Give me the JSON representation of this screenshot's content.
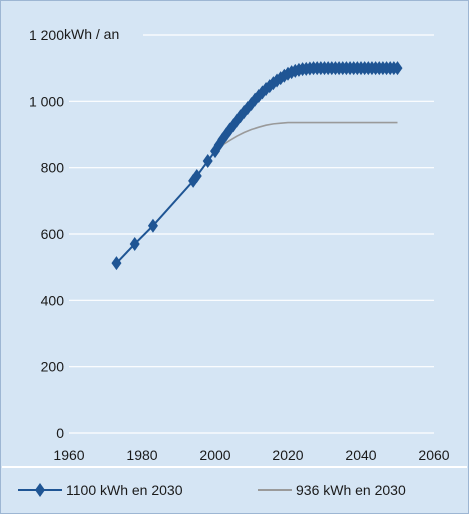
{
  "chart_data": {
    "type": "line",
    "title": "",
    "ylabel": "kWh / an",
    "xlabel": "",
    "xlim": [
      1960,
      2060
    ],
    "ylim": [
      0,
      1200
    ],
    "x_ticks": [
      "1960",
      "1980",
      "2000",
      "2020",
      "2040",
      "2060"
    ],
    "y_ticks": [
      "0",
      "200",
      "400",
      "600",
      "800",
      "1 000",
      "1 200"
    ],
    "grid": "horizontal",
    "legend_position": "bottom",
    "series": [
      {
        "name": "1100 kWh en 2030",
        "color": "#1f5594",
        "marker": "diamond",
        "x": [
          1973,
          1978,
          1983,
          1994,
          1995,
          1998,
          2000,
          2001,
          2002,
          2003,
          2004,
          2005,
          2006,
          2007,
          2008,
          2009,
          2010,
          2011,
          2012,
          2013,
          2014,
          2015,
          2016,
          2017,
          2018,
          2019,
          2020,
          2021,
          2022,
          2023,
          2024,
          2025,
          2026,
          2027,
          2028,
          2029,
          2030,
          2031,
          2032,
          2033,
          2034,
          2035,
          2036,
          2037,
          2038,
          2039,
          2040,
          2041,
          2042,
          2043,
          2044,
          2045,
          2046,
          2047,
          2048,
          2049,
          2050
        ],
        "y": [
          512,
          570,
          625,
          760,
          775,
          820,
          850,
          868,
          885,
          900,
          915,
          928,
          942,
          955,
          968,
          980,
          992,
          1005,
          1016,
          1027,
          1037,
          1046,
          1055,
          1063,
          1070,
          1077,
          1083,
          1088,
          1092,
          1095,
          1097,
          1098,
          1099,
          1100,
          1100,
          1100,
          1100,
          1100,
          1100,
          1100,
          1100,
          1100,
          1100,
          1100,
          1100,
          1100,
          1100,
          1100,
          1100,
          1100,
          1100,
          1100,
          1100,
          1100,
          1100,
          1100,
          1100
        ]
      },
      {
        "name": "936 kWh en 2030",
        "color": "#9a9a9a",
        "marker": "none",
        "x": [
          2000,
          2002,
          2004,
          2006,
          2008,
          2010,
          2012,
          2014,
          2016,
          2018,
          2020,
          2025,
          2030,
          2040,
          2050
        ],
        "y": [
          850,
          868,
          882,
          895,
          906,
          915,
          922,
          928,
          932,
          934,
          936,
          936,
          936,
          936,
          936
        ]
      }
    ]
  }
}
